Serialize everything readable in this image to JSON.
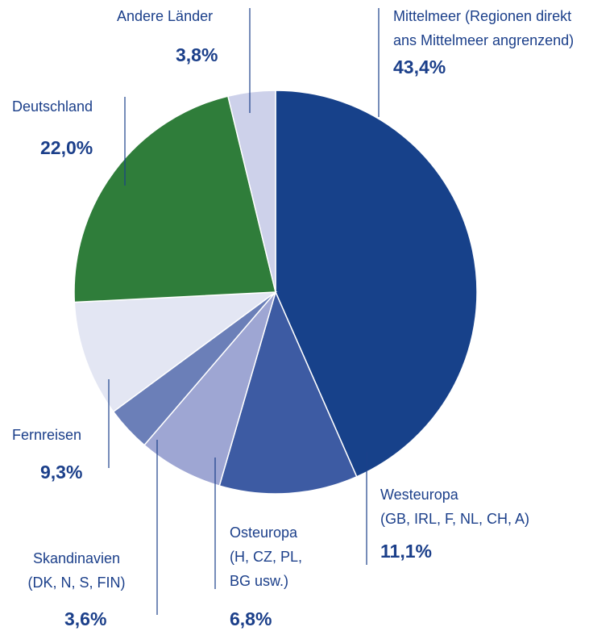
{
  "chart_data": {
    "type": "pie",
    "categories": [
      "Mittelmeer (Regionen direkt\nans Mittelmeer angrenzend)",
      "Westeuropa\n(GB, IRL, F, NL, CH, A)",
      "Osteuropa\n(H, CZ, PL,\nBG usw.)",
      "Skandinavien\n(DK, N, S, FIN)",
      "Fernreisen",
      "Deutschland",
      "Andere Länder"
    ],
    "values": [
      43.4,
      11.1,
      6.8,
      3.6,
      9.3,
      22.0,
      3.8
    ],
    "value_labels": [
      "43,4%",
      "11,1%",
      "6,8%",
      "3,6%",
      "9,3%",
      "22,0%",
      "3,8%"
    ],
    "colors": [
      "#17418a",
      "#3d5ba3",
      "#9ea6d3",
      "#6b7fb8",
      "#e3e6f3",
      "#2f7d3a",
      "#cdd1ea"
    ]
  }
}
